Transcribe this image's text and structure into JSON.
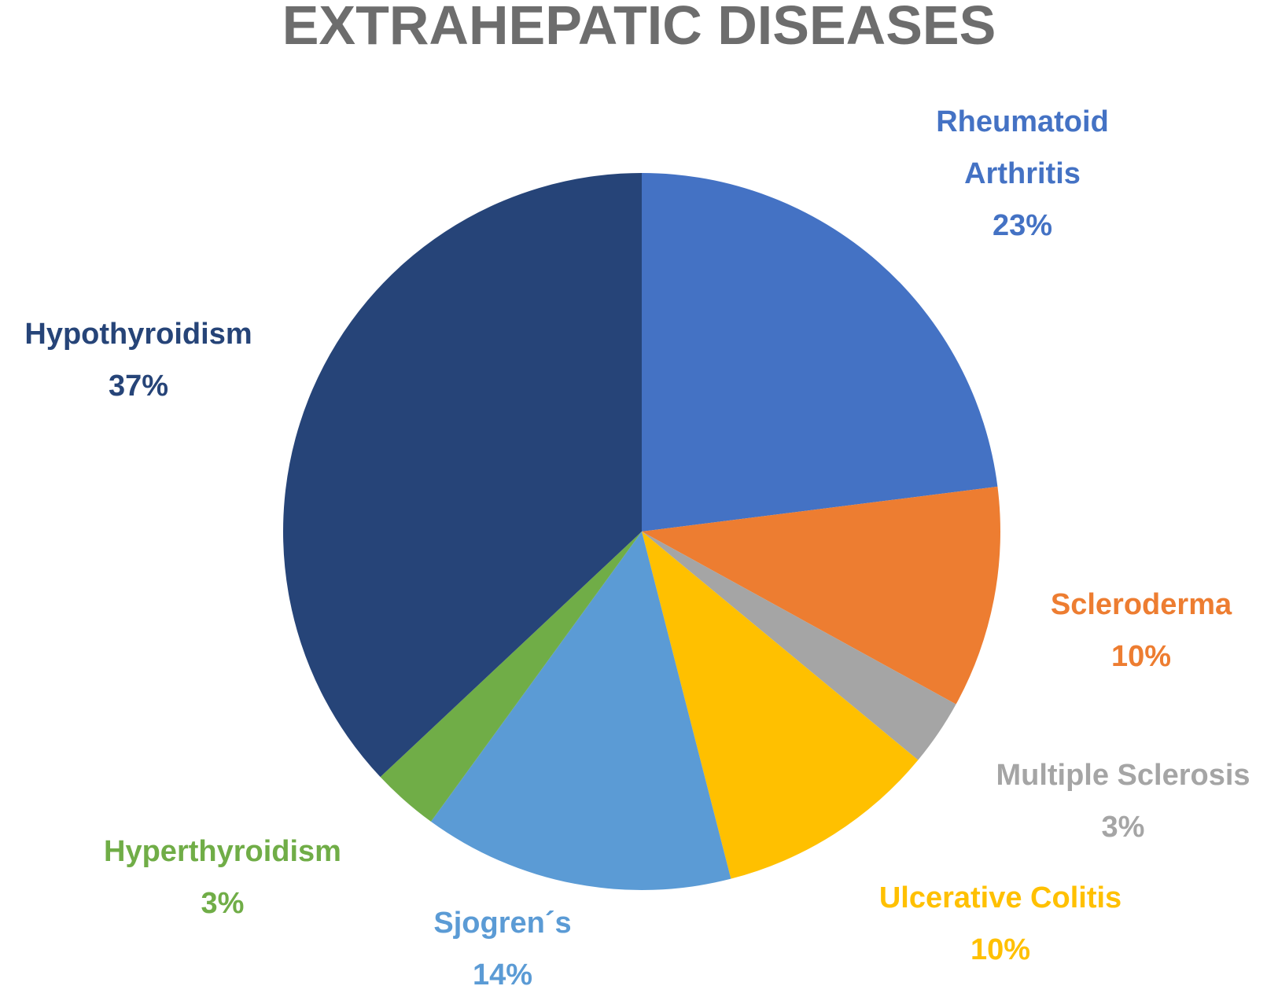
{
  "chart_data": {
    "type": "pie",
    "title": "EXTRAHEPATIC DISEASES",
    "categories": [
      "Rheumatoid Arthritis",
      "Scleroderma",
      "Multiple Sclerosis",
      "Ulcerative Colitis",
      "Sjogren´s",
      "Hyperthyroidism",
      "Hypothyroidism"
    ],
    "values": [
      23,
      10,
      3,
      10,
      14,
      3,
      37
    ],
    "value_labels": [
      "23%",
      "10%",
      "3%",
      "10%",
      "14%",
      "3%",
      "37%"
    ],
    "colors": [
      "#4472c4",
      "#ed7d31",
      "#a5a5a5",
      "#ffc000",
      "#5b9bd5",
      "#70ad47",
      "#264478"
    ]
  }
}
